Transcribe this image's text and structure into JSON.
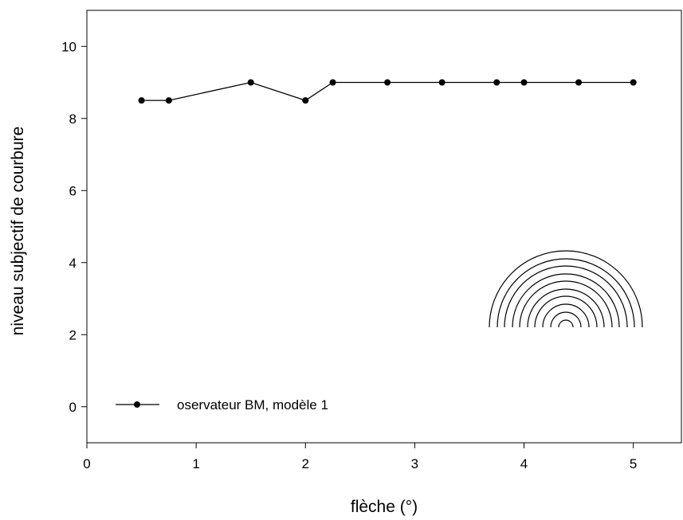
{
  "chart_data": {
    "type": "line",
    "x_label": "flèche (°)",
    "y_label": "niveau subjectif de courbure",
    "x": [
      0.5,
      0.75,
      1.5,
      2,
      2.25,
      2.75,
      3.25,
      3.75,
      4,
      4.5,
      5
    ],
    "series": [
      {
        "name": "oservateur BM, modèle 1",
        "color": "#000000",
        "values": [
          8.5,
          8.5,
          9,
          8.5,
          9,
          9,
          9,
          9,
          9,
          9,
          9
        ]
      }
    ],
    "xlim": [
      0,
      5.44
    ],
    "xticks": [
      0,
      1,
      2,
      3,
      4,
      5
    ],
    "ylim": [
      -1,
      11
    ],
    "yticks": [
      0,
      2,
      4,
      6,
      8,
      10
    ],
    "legend": "lower left"
  }
}
